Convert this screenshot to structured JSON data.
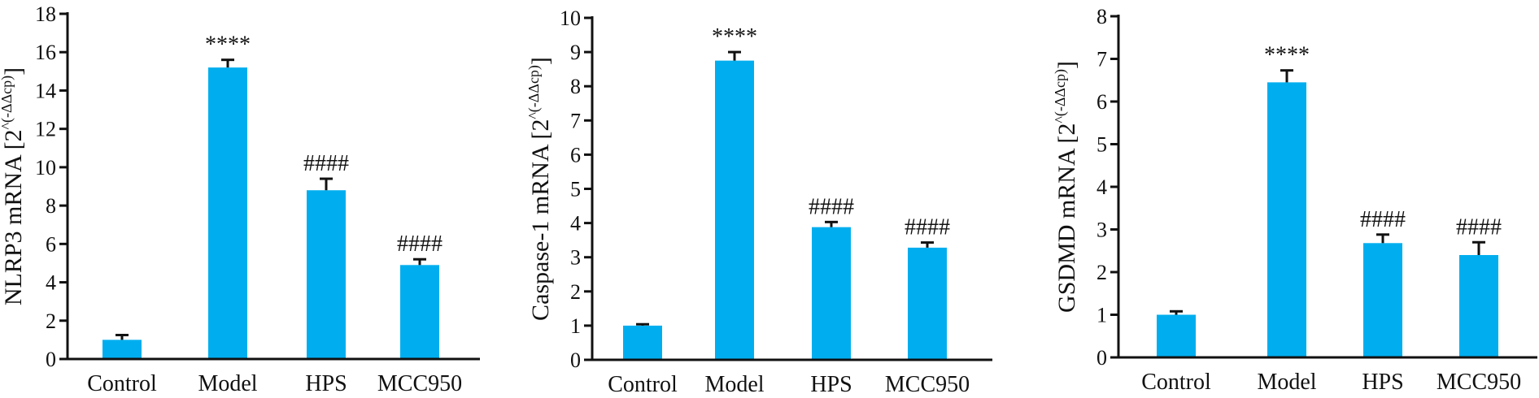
{
  "colors": {
    "bar": "#00aeef",
    "axis": "#111111"
  },
  "ylabel_superscript": "^(-ΔΔcp)",
  "chart_data": [
    {
      "type": "bar",
      "ylabel": "NLRP3 mRNA [2",
      "ylabel_suffix": "]",
      "categories": [
        "Control",
        "Model",
        "HPS",
        "MCC950"
      ],
      "values": [
        1.0,
        15.2,
        8.8,
        4.9
      ],
      "errors": [
        0.25,
        0.4,
        0.6,
        0.3
      ],
      "annotations": [
        "",
        "****",
        "####",
        "####"
      ],
      "ylim": [
        0,
        18
      ],
      "yticks": [
        "0",
        "2",
        "4",
        "6",
        "8",
        "10",
        "12",
        "14",
        "16",
        "18"
      ],
      "ytick_values": [
        0,
        2,
        4,
        6,
        8,
        10,
        12,
        14,
        16,
        18
      ],
      "grid": false
    },
    {
      "type": "bar",
      "ylabel": "Caspase-1 mRNA [2",
      "ylabel_suffix": "]",
      "categories": [
        "Control",
        "Model",
        "HPS",
        "MCC950"
      ],
      "values": [
        1.0,
        8.75,
        3.88,
        3.28
      ],
      "errors": [
        0.04,
        0.25,
        0.15,
        0.15
      ],
      "annotations": [
        "",
        "****",
        "####",
        "####"
      ],
      "ylim": [
        0,
        10
      ],
      "yticks": [
        "0",
        "1",
        "2",
        "3",
        "4",
        "5",
        "6",
        "7",
        "8",
        "9",
        "10"
      ],
      "ytick_values": [
        0,
        1,
        2,
        3,
        4,
        5,
        6,
        7,
        8,
        9,
        10
      ],
      "grid": false
    },
    {
      "type": "bar",
      "ylabel": "GSDMD mRNA [2",
      "ylabel_suffix": "]",
      "categories": [
        "Control",
        "Model",
        "HPS",
        "MCC950"
      ],
      "values": [
        1.0,
        6.45,
        2.68,
        2.4
      ],
      "errors": [
        0.08,
        0.28,
        0.2,
        0.3
      ],
      "annotations": [
        "",
        "****",
        "####",
        "####"
      ],
      "ylim": [
        0,
        8
      ],
      "yticks": [
        "0",
        "1",
        "2",
        "3",
        "4",
        "5",
        "6",
        "7",
        "8"
      ],
      "ytick_values": [
        0,
        1,
        2,
        3,
        4,
        5,
        6,
        7,
        8
      ],
      "grid": false
    }
  ]
}
